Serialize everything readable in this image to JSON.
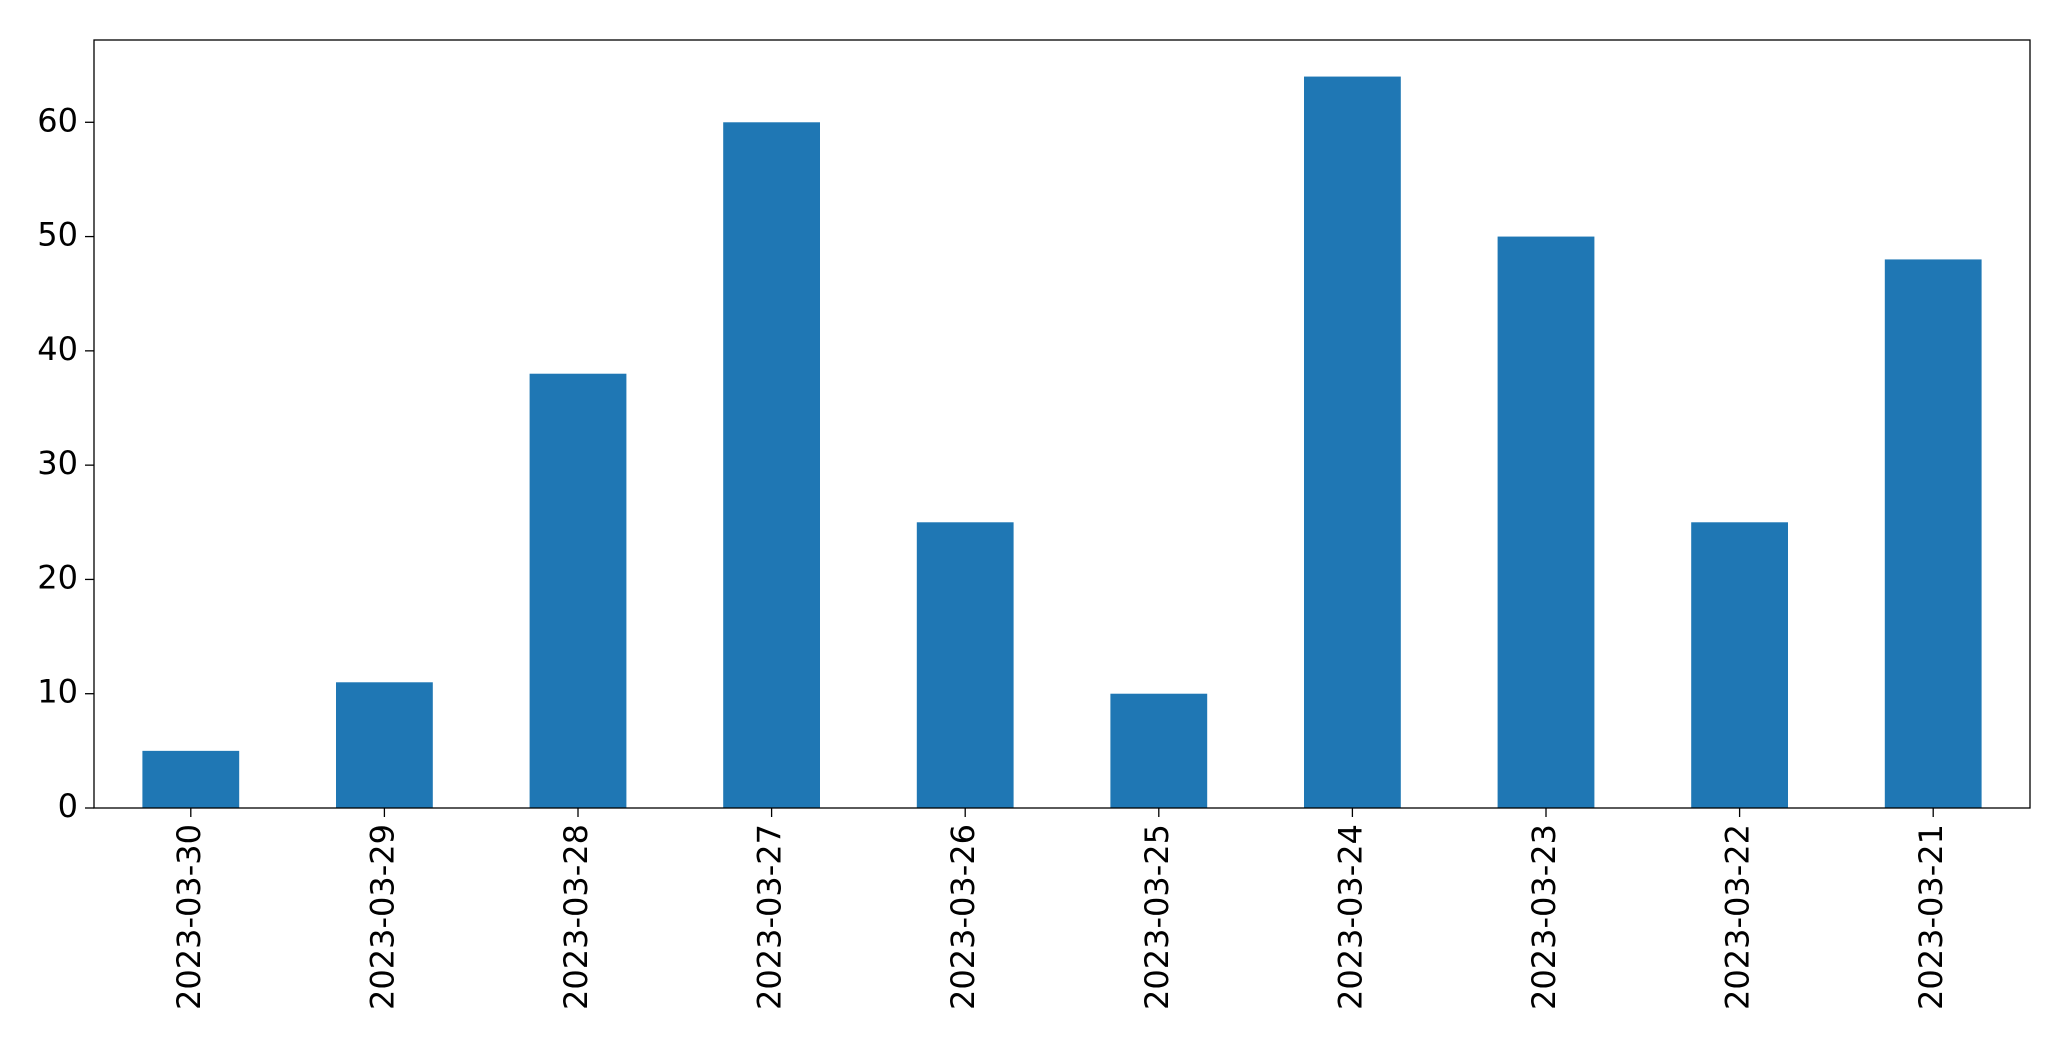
{
  "chart_data": {
    "type": "bar",
    "categories": [
      "2023-03-30",
      "2023-03-29",
      "2023-03-28",
      "2023-03-27",
      "2023-03-26",
      "2023-03-25",
      "2023-03-24",
      "2023-03-23",
      "2023-03-22",
      "2023-03-21"
    ],
    "values": [
      5,
      11,
      38,
      60,
      25,
      10,
      64,
      50,
      25,
      48
    ],
    "color": "#1f77b4",
    "ylim": [
      0,
      67.2
    ],
    "yticks": [
      0,
      10,
      20,
      30,
      40,
      50,
      60
    ],
    "grid": false
  }
}
